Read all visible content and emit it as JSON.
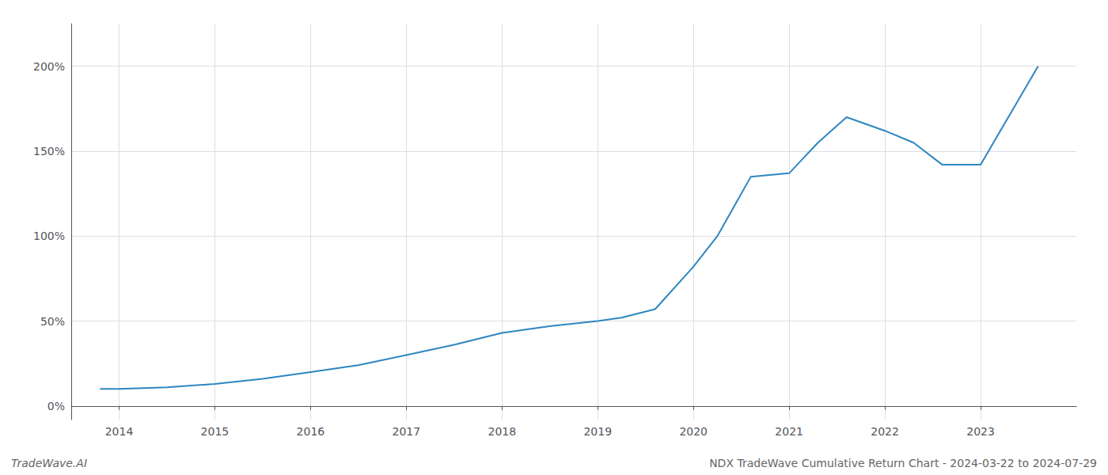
{
  "chart_data": {
    "type": "line",
    "x": [
      2013.8,
      2014.0,
      2014.5,
      2015.0,
      2015.5,
      2016.0,
      2016.5,
      2017.0,
      2017.5,
      2018.0,
      2018.5,
      2019.0,
      2019.25,
      2019.6,
      2020.0,
      2020.25,
      2020.6,
      2021.0,
      2021.3,
      2021.6,
      2022.0,
      2022.3,
      2022.6,
      2023.0,
      2023.6
    ],
    "values": [
      0.1,
      0.1,
      0.11,
      0.13,
      0.16,
      0.2,
      0.24,
      0.3,
      0.36,
      0.43,
      0.47,
      0.5,
      0.52,
      0.57,
      0.82,
      1.0,
      1.35,
      1.37,
      1.55,
      1.7,
      1.62,
      1.55,
      1.42,
      1.42,
      2.0
    ],
    "color": "#2e86c1",
    "xlim": [
      2013.5,
      2024.0
    ],
    "ylim": [
      -0.08,
      2.25
    ],
    "xticks": [
      2014,
      2015,
      2016,
      2017,
      2018,
      2019,
      2020,
      2021,
      2022,
      2023
    ],
    "yticks": [
      {
        "value": 0.0,
        "label": "0%"
      },
      {
        "value": 0.5,
        "label": "50%"
      },
      {
        "value": 1.0,
        "label": "100%"
      },
      {
        "value": 1.5,
        "label": "150%"
      },
      {
        "value": 2.0,
        "label": "200%"
      }
    ],
    "grid": true,
    "annotations": [
      "TradeWave.AI",
      "NDX TradeWave Cumulative Return Chart - 2024-03-22 to 2024-07-29"
    ]
  }
}
